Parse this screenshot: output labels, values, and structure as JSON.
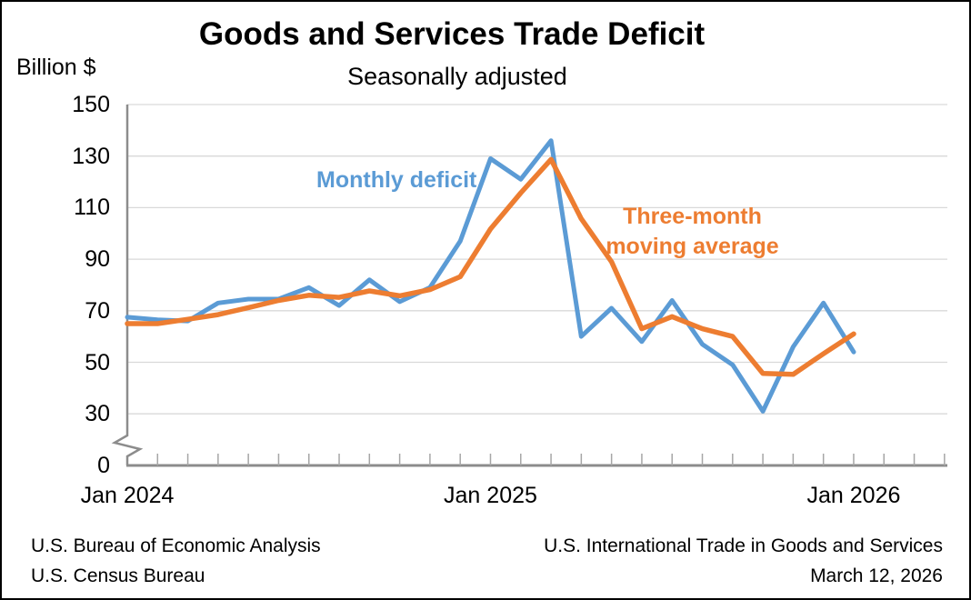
{
  "title": "Goods and Services Trade Deficit",
  "subtitle": "Seasonally adjusted",
  "y_axis_unit": "Billion $",
  "series_labels": {
    "monthly": "Monthly deficit",
    "moving_avg_line1": "Three-month",
    "moving_avg_line2": "moving average"
  },
  "footer": {
    "left_line1": "U.S. Bureau of Economic Analysis",
    "left_line2": "U.S. Census Bureau",
    "right_line1": "U.S. International Trade in Goods and Services",
    "right_line2": "March 12, 2026"
  },
  "colors": {
    "monthly_deficit": "#5B9BD5",
    "moving_average": "#ED7D31",
    "gridline": "#D9D9D9",
    "axis": "#8C8C8C",
    "tick": "#A6A6A6",
    "text": "#000000"
  },
  "chart_data": {
    "type": "line",
    "x": [
      "Jan 2024",
      "Feb 2024",
      "Mar 2024",
      "Apr 2024",
      "May 2024",
      "Jun 2024",
      "Jul 2024",
      "Aug 2024",
      "Sep 2024",
      "Oct 2024",
      "Nov 2024",
      "Dec 2024",
      "Jan 2025",
      "Feb 2025",
      "Mar 2025",
      "Apr 2025",
      "May 2025",
      "Jun 2025",
      "Jul 2025",
      "Aug 2025",
      "Sep 2025",
      "Oct 2025",
      "Nov 2025",
      "Dec 2025",
      "Jan 2026"
    ],
    "series": [
      {
        "name": "Monthly deficit",
        "color": "#5B9BD5",
        "values": [
          67.5,
          66.5,
          66,
          73,
          74.5,
          74.5,
          79,
          72,
          82,
          73.5,
          79,
          97,
          129,
          121,
          136,
          60,
          71,
          58,
          74,
          57,
          49,
          31,
          56,
          73,
          54
        ]
      },
      {
        "name": "Three-month moving average",
        "color": "#ED7D31",
        "values": [
          65,
          65,
          66.7,
          68.5,
          71.2,
          74.0,
          76.0,
          75.2,
          77.7,
          75.8,
          78.2,
          83.2,
          101.7,
          115.7,
          128.7,
          105.7,
          89.0,
          63.0,
          67.7,
          63.0,
          60.0,
          45.7,
          45.3,
          53.3,
          61.0
        ]
      }
    ],
    "x_tick_labels": [
      "Jan 2024",
      "Jan 2025",
      "Jan 2026"
    ],
    "x_tick_month_indices": [
      0,
      12,
      24
    ],
    "y_ticks": [
      0,
      30,
      50,
      70,
      90,
      110,
      130,
      150
    ],
    "ylim": [
      0,
      150
    ],
    "y_axis_break_between": [
      0,
      30
    ],
    "grid": "horizontal",
    "legend_position": "inline-text-labels"
  }
}
